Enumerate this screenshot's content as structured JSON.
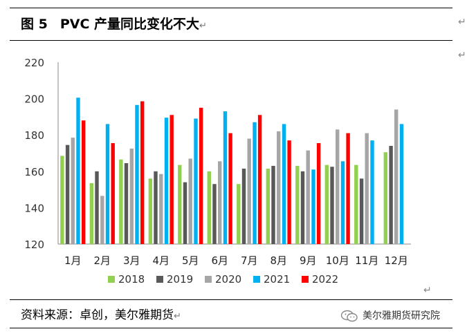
{
  "header": {
    "figure_label": "图 5",
    "title": "PVC 产量同比变化不大",
    "return_mark": "↵"
  },
  "side_marks": [
    "↵",
    "↵"
  ],
  "chart_return_mark": "↵",
  "footer": {
    "source": "资料来源：卓创，美尔雅期货",
    "return_mark": "↵",
    "watermark": "美尔雅期货研究院",
    "watermark_icon": "wechat-icon"
  },
  "chart_data": {
    "type": "bar",
    "title": "",
    "xlabel": "",
    "ylabel": "",
    "ylim": [
      120,
      220
    ],
    "yticks": [
      120,
      140,
      160,
      180,
      200,
      220
    ],
    "grid": false,
    "legend_position": "bottom",
    "categories": [
      "1月",
      "2月",
      "3月",
      "4月",
      "5月",
      "6月",
      "7月",
      "8月",
      "9月",
      "10月",
      "11月",
      "12月"
    ],
    "series": [
      {
        "name": "2018",
        "color": "#92d050",
        "values": [
          168.5,
          153.5,
          166.5,
          156.0,
          163.5,
          160.0,
          153.0,
          161.5,
          163.0,
          163.5,
          163.5,
          170.5
        ]
      },
      {
        "name": "2019",
        "color": "#595959",
        "values": [
          174.5,
          160.0,
          164.5,
          160.0,
          154.0,
          153.0,
          161.5,
          163.0,
          160.0,
          162.5,
          156.0,
          174.0
        ]
      },
      {
        "name": "2020",
        "color": "#a6a6a6",
        "values": [
          178.5,
          146.5,
          172.5,
          158.5,
          167.0,
          165.5,
          178.0,
          182.0,
          171.5,
          183.0,
          181.0,
          194.0
        ]
      },
      {
        "name": "2021",
        "color": "#00b0f0",
        "values": [
          200.5,
          186.0,
          196.5,
          189.5,
          189.0,
          193.0,
          187.0,
          186.0,
          161.0,
          165.5,
          177.0,
          186.0
        ]
      },
      {
        "name": "2022",
        "color": "#ff0000",
        "values": [
          188.0,
          175.5,
          198.5,
          191.0,
          195.0,
          181.0,
          191.0,
          177.0,
          175.5,
          181.0,
          null,
          null
        ]
      }
    ]
  }
}
